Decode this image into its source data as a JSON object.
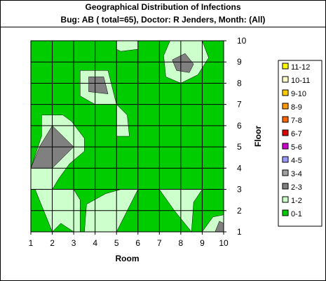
{
  "header": {
    "title": "Geographical Distribution of Infections",
    "subtitle": "Bug: AB ( total=65), Doctor: R Jenders, Month: (All)"
  },
  "chart_data": {
    "type": "heatmap",
    "title": "Geographical Distribution of Infections",
    "subtitle": "Bug: AB ( total=65), Doctor: R Jenders, Month: (All)",
    "xlabel": "Room",
    "ylabel": "Floor",
    "x": [
      1,
      2,
      3,
      4,
      5,
      6,
      7,
      8,
      9,
      10
    ],
    "y": [
      1,
      2,
      3,
      4,
      5,
      6,
      7,
      8,
      9,
      10
    ],
    "xlim": [
      1,
      10
    ],
    "ylim": [
      1,
      10
    ],
    "grid": true,
    "legend_position": "right",
    "colors": {
      "0-1": "#00cc00",
      "1-2": "#ccffcc",
      "2-3": "#808080",
      "3-4": "#a0a0a0",
      "4-5": "#9999ff",
      "5-6": "#cc00cc",
      "6-7": "#dd0000",
      "7-8": "#ff6600",
      "8-9": "#ff9900",
      "9-10": "#ffcc00",
      "10-11": "#ffffcc",
      "11-12": "#ffff00"
    },
    "legend": [
      "11-12",
      "10-11",
      "9-10",
      "8-9",
      "7-8",
      "6-7",
      "5-6",
      "4-5",
      "3-4",
      "2-3",
      "1-2",
      "0-1"
    ],
    "background_band": "0-1",
    "regions": [
      {
        "band": "1-2",
        "points": [
          [
            5,
            10
          ],
          [
            6,
            10
          ],
          [
            6,
            9.6
          ],
          [
            5.2,
            9.5
          ],
          [
            5,
            9.6
          ]
        ]
      },
      {
        "band": "1-2",
        "points": [
          [
            7.5,
            10
          ],
          [
            9,
            10
          ],
          [
            9.3,
            9.2
          ],
          [
            8.8,
            8.4
          ],
          [
            8,
            8
          ],
          [
            7.3,
            8.3
          ],
          [
            7.2,
            9.3
          ]
        ]
      },
      {
        "band": "2-3",
        "points": [
          [
            7.6,
            9.1
          ],
          [
            8.2,
            9.4
          ],
          [
            8.6,
            8.9
          ],
          [
            8.4,
            8.5
          ],
          [
            7.8,
            8.6
          ]
        ]
      },
      {
        "band": "1-2",
        "points": [
          [
            3.3,
            8.6
          ],
          [
            4.6,
            8.6
          ],
          [
            5,
            7
          ],
          [
            4,
            7
          ],
          [
            3.3,
            7.4
          ]
        ]
      },
      {
        "band": "2-3",
        "points": [
          [
            3.7,
            8.3
          ],
          [
            4.4,
            8.3
          ],
          [
            4.6,
            7.5
          ],
          [
            3.7,
            7.6
          ]
        ]
      },
      {
        "band": "1-2",
        "points": [
          [
            5,
            7
          ],
          [
            5.5,
            6.5
          ],
          [
            5.6,
            5.5
          ],
          [
            5,
            5.5
          ]
        ]
      },
      {
        "band": "1-2",
        "points": [
          [
            1.5,
            6.5
          ],
          [
            2.5,
            6.5
          ],
          [
            2.9,
            6.2
          ],
          [
            3.5,
            5.4
          ],
          [
            3.5,
            4.8
          ],
          [
            2.8,
            4.2
          ],
          [
            2.3,
            3.5
          ],
          [
            2,
            3
          ],
          [
            1,
            3
          ],
          [
            1,
            4
          ],
          [
            1.5,
            5.5
          ]
        ]
      },
      {
        "band": "2-3",
        "points": [
          [
            2,
            6
          ],
          [
            3,
            5
          ],
          [
            2,
            4
          ],
          [
            1,
            4
          ],
          [
            1.4,
            5
          ]
        ]
      },
      {
        "band": "1-2",
        "points": [
          [
            1.2,
            3
          ],
          [
            3,
            3
          ],
          [
            3.3,
            2.5
          ],
          [
            3.3,
            1
          ],
          [
            3,
            1
          ],
          [
            2.4,
            1.4
          ],
          [
            2,
            1
          ]
        ]
      },
      {
        "band": "1-2",
        "points": [
          [
            4,
            1
          ],
          [
            5,
            1
          ],
          [
            6,
            3
          ],
          [
            5.2,
            3
          ],
          [
            4.5,
            2.8
          ],
          [
            3.6,
            2.3
          ],
          [
            3.5,
            1
          ]
        ]
      },
      {
        "band": "1-2",
        "points": [
          [
            7,
            3
          ],
          [
            8,
            3
          ],
          [
            9,
            3
          ],
          [
            8.6,
            2.4
          ],
          [
            8.5,
            1
          ],
          [
            7.7,
            2
          ]
        ]
      },
      {
        "band": "1-2",
        "points": [
          [
            9,
            1
          ],
          [
            10,
            1
          ],
          [
            10,
            1.8
          ],
          [
            9.5,
            1.7
          ]
        ]
      },
      {
        "band": "2-3",
        "points": [
          [
            9.6,
            1
          ],
          [
            10,
            1
          ],
          [
            10,
            1.4
          ],
          [
            9.8,
            1.5
          ]
        ]
      }
    ]
  }
}
